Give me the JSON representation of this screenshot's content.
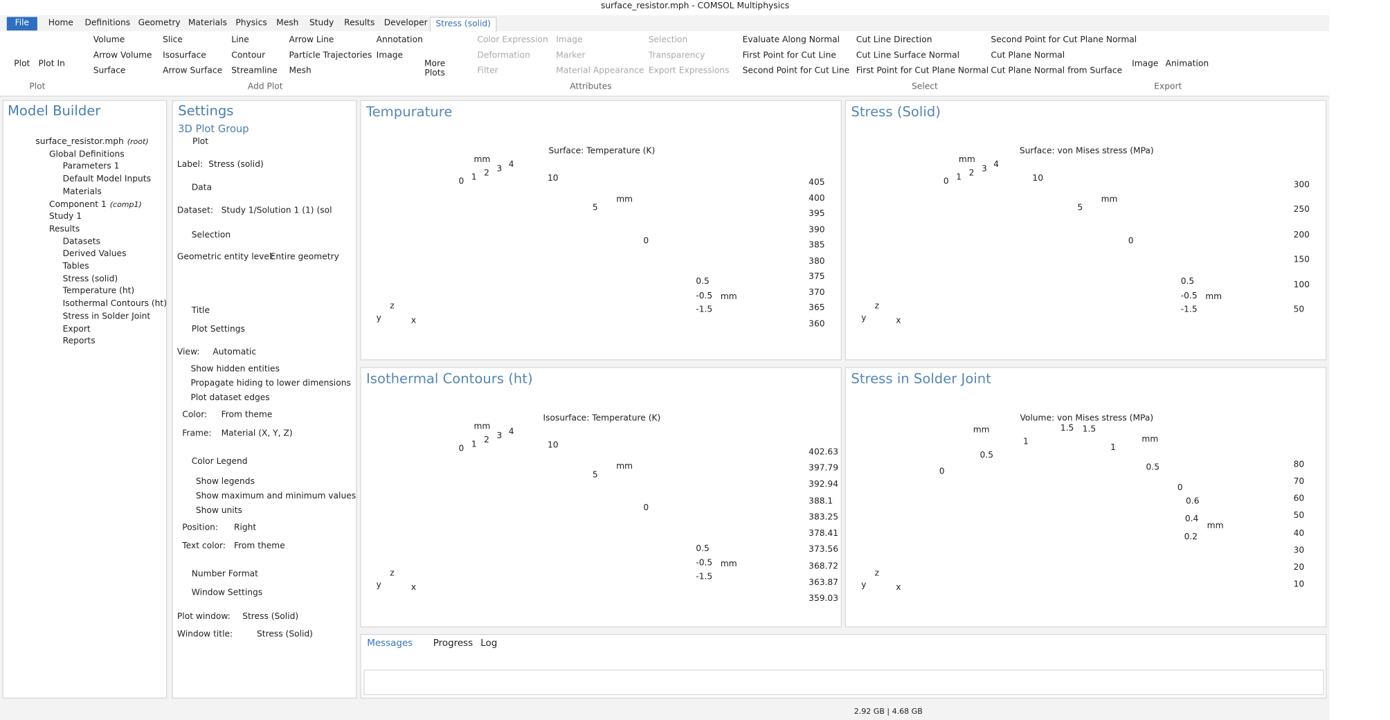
{
  "title_bar": "surface_resistor.mph - COMSOL Multiphysics",
  "menu": [
    "File",
    "Home",
    "Definitions",
    "Geometry",
    "Materials",
    "Physics",
    "Mesh",
    "Study",
    "Results",
    "Developer",
    "Stress (solid)"
  ],
  "ribbon": {
    "groups": [
      {
        "label": "Plot",
        "items": [
          "Plot",
          "Plot In"
        ]
      },
      {
        "label": "Add Plot",
        "items": [
          "Volume",
          "Arrow Volume",
          "Surface",
          "Slice",
          "Isosurface",
          "Arrow Surface",
          "Line",
          "Contour",
          "Streamline",
          "Arrow Line",
          "Particle Trajectories",
          "Mesh",
          "Annotation",
          "Image",
          "More Plots"
        ]
      },
      {
        "label": "Attributes",
        "items": [
          "Color Expression",
          "Deformation",
          "Filter",
          "Image",
          "Marker",
          "Material Appearance",
          "Selection",
          "Transparency",
          "Export Expressions"
        ]
      },
      {
        "label": "Select",
        "items": [
          "Evaluate Along Normal",
          "First Point for Cut Line",
          "Second Point for Cut Line",
          "Cut Line Direction",
          "Cut Line Surface Normal",
          "First Point for Cut Plane Normal",
          "Second Point for Cut Plane Normal",
          "Cut Plane Normal",
          "Cut Plane Normal from Surface"
        ]
      },
      {
        "label": "Export",
        "items": [
          "Image",
          "Animation"
        ]
      }
    ]
  },
  "model_builder": {
    "title": "Model Builder",
    "items": [
      {
        "label": "surface_resistor.mph",
        "note": "(root)"
      },
      {
        "label": "Global Definitions"
      },
      {
        "label": "Parameters 1"
      },
      {
        "label": "Default Model Inputs"
      },
      {
        "label": "Materials"
      },
      {
        "label": "Component 1",
        "note": "(comp1)"
      },
      {
        "label": "Study 1"
      },
      {
        "label": "Results"
      },
      {
        "label": "Datasets"
      },
      {
        "label": "Derived Values"
      },
      {
        "label": "Tables"
      },
      {
        "label": "Stress (solid)"
      },
      {
        "label": "Temperature (ht)"
      },
      {
        "label": "Isothermal Contours (ht)"
      },
      {
        "label": "Stress in Solder Joint"
      },
      {
        "label": "Export"
      },
      {
        "label": "Reports"
      }
    ]
  },
  "settings": {
    "title": "Settings",
    "subtitle": "3D Plot Group",
    "plot_button": "Plot",
    "label": {
      "caption": "Label:",
      "value": "Stress (solid)"
    },
    "dataset": {
      "caption": "Dataset:",
      "value": "Study 1/Solution 1 (1) (sol"
    },
    "entity": {
      "caption": "Geometric entity level:",
      "value": "Entire geometry"
    },
    "view": {
      "caption": "View:",
      "value": "Automatic"
    },
    "color": {
      "caption": "Color:",
      "value": "From theme"
    },
    "frame": {
      "caption": "Frame:",
      "value": "Material (X, Y, Z)"
    },
    "position": {
      "caption": "Position:",
      "value": "Right"
    },
    "text_color": {
      "caption": "Text color:",
      "value": "From theme"
    },
    "plot_window": {
      "caption": "Plot window:",
      "value": "Stress (Solid)"
    },
    "window_title": {
      "caption": "Window title:",
      "value": "Stress (Solid)",
      "checked": true
    },
    "sections": [
      "Data",
      "Selection",
      "Title",
      "Plot Settings",
      "Color Legend",
      "Number Format",
      "Window Settings"
    ],
    "plot_checks": [
      {
        "label": "Show hidden entities",
        "checked": false
      },
      {
        "label": "Propagate hiding to lower dimensions",
        "checked": false
      },
      {
        "label": "Plot dataset edges",
        "checked": true
      }
    ],
    "legend_checks": [
      {
        "label": "Show legends",
        "checked": true
      },
      {
        "label": "Show maximum and minimum values",
        "checked": false
      },
      {
        "label": "Show units",
        "checked": false
      }
    ]
  },
  "plots": [
    {
      "window_title": "Tempurature",
      "plot_title": "Surface: Temperature (K)",
      "legend": [
        405,
        400,
        395,
        390,
        385,
        380,
        375,
        370,
        365,
        360
      ],
      "axis_labels": [
        "mm",
        0,
        1,
        2,
        3,
        4,
        10,
        "mm",
        5,
        0,
        0.5,
        -0.5,
        "mm",
        -1.5
      ],
      "triad": [
        "z",
        "y",
        "x"
      ]
    },
    {
      "window_title": "Stress (Solid)",
      "plot_title": "Surface: von Mises stress (MPa)",
      "legend": [
        300,
        250,
        200,
        150,
        100,
        50
      ],
      "axis_labels": [
        "mm",
        0,
        1,
        2,
        3,
        4,
        10,
        "mm",
        5,
        0,
        0.5,
        -0.5,
        "mm",
        -1.5
      ],
      "triad": [
        "z",
        "y",
        "x"
      ]
    },
    {
      "window_title": "Isothermal Contours (ht)",
      "plot_title": "Isosurface: Temperature (K)",
      "legend": [
        402.63,
        397.79,
        392.94,
        388.1,
        383.25,
        378.41,
        373.56,
        368.72,
        363.87,
        359.03
      ],
      "axis_labels": [
        "mm",
        0,
        1,
        2,
        3,
        4,
        10,
        "mm",
        5,
        0,
        0.5,
        -0.5,
        "mm",
        -1.5
      ],
      "triad": [
        "z",
        "y",
        "x"
      ]
    },
    {
      "window_title": "Stress in Solder Joint",
      "plot_title": "Volume: von Mises stress (MPa)",
      "legend": [
        80,
        70,
        60,
        50,
        40,
        30,
        20,
        10
      ],
      "axis_labels": [
        0,
        0.5,
        "mm",
        1,
        1.5,
        1.5,
        1,
        "mm",
        0.5,
        0,
        0.6,
        0.4,
        "mm",
        0.2
      ],
      "triad": [
        "z",
        "y",
        "x"
      ]
    }
  ],
  "messages": {
    "tabs": [
      "Messages",
      "Progress",
      "Log"
    ]
  },
  "status": "2.92 GB | 4.68 GB"
}
